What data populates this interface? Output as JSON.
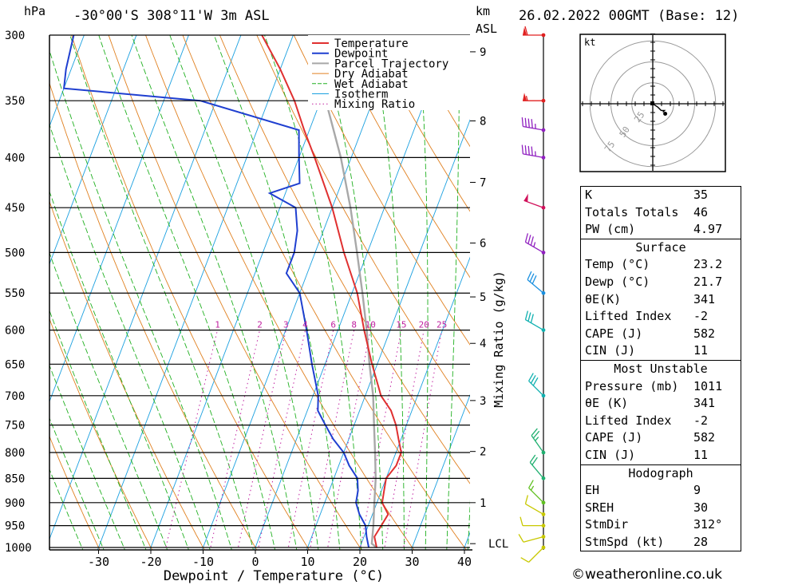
{
  "header": {
    "hpa_label": "hPa",
    "location": "-30°00'S 308°11'W 3m ASL",
    "km_label": "km",
    "asl_label": "ASL",
    "datetime": "26.02.2022 00GMT (Base: 12)"
  },
  "legend": [
    "Temperature",
    "Dewpoint",
    "Parcel Trajectory",
    "Dry Adiabat",
    "Wet Adiabat",
    "Isotherm",
    "Mixing Ratio"
  ],
  "colors": {
    "temperature": "#e03030",
    "dewpoint": "#1f3fd0",
    "parcel": "#a8a8a8",
    "dry_adiabat": "#e08020",
    "wet_adiabat": "#20b020",
    "isotherm": "#1aa0e0",
    "mixing_ratio": "#c020a0"
  },
  "chart_data": {
    "type": "line",
    "title": "Skew-T log-P diagram",
    "xlabel": "Dewpoint / Temperature (°C)",
    "ylabel": "hPa",
    "y2label": "Mixing Ratio (g/kg)",
    "pressure_ticks": [
      300,
      350,
      400,
      450,
      500,
      550,
      600,
      650,
      700,
      750,
      800,
      850,
      900,
      950,
      1000
    ],
    "temp_ticks": [
      -30,
      -20,
      -10,
      0,
      10,
      20,
      30,
      40
    ],
    "xlim": [
      -40,
      40
    ],
    "ylim": [
      1000,
      300
    ],
    "km_ticks": [
      {
        "label": "9",
        "p": 312
      },
      {
        "label": "8",
        "p": 367
      },
      {
        "label": "7",
        "p": 424
      },
      {
        "label": "6",
        "p": 489
      },
      {
        "label": "5",
        "p": 555
      },
      {
        "label": "4",
        "p": 619
      },
      {
        "label": "3",
        "p": 708
      },
      {
        "label": "2",
        "p": 798
      },
      {
        "label": "1",
        "p": 900
      }
    ],
    "lcl": {
      "label": "LCL",
      "p": 991
    },
    "mixing_ratio_labels": [
      "1",
      "2",
      "3",
      "4",
      "6",
      "8",
      "10",
      "15",
      "20",
      "25"
    ],
    "series": [
      {
        "name": "Temperature",
        "points": [
          [
            1000,
            23.2
          ],
          [
            975,
            22
          ],
          [
            950,
            22.5
          ],
          [
            925,
            23
          ],
          [
            900,
            21
          ],
          [
            875,
            20.5
          ],
          [
            850,
            20
          ],
          [
            825,
            21
          ],
          [
            800,
            21
          ],
          [
            775,
            19.5
          ],
          [
            750,
            18
          ],
          [
            725,
            16
          ],
          [
            700,
            13
          ],
          [
            650,
            9
          ],
          [
            600,
            5
          ],
          [
            550,
            1
          ],
          [
            500,
            -4.5
          ],
          [
            450,
            -10
          ],
          [
            400,
            -17
          ],
          [
            375,
            -21
          ],
          [
            350,
            -25
          ],
          [
            325,
            -30
          ],
          [
            300,
            -36
          ]
        ]
      },
      {
        "name": "Dewpoint",
        "points": [
          [
            1000,
            21.7
          ],
          [
            975,
            20.5
          ],
          [
            950,
            19.5
          ],
          [
            925,
            17.5
          ],
          [
            900,
            16
          ],
          [
            875,
            15.5
          ],
          [
            850,
            14.5
          ],
          [
            825,
            12
          ],
          [
            800,
            10
          ],
          [
            775,
            7
          ],
          [
            750,
            4.5
          ],
          [
            725,
            2
          ],
          [
            700,
            1
          ],
          [
            650,
            -2.5
          ],
          [
            600,
            -6
          ],
          [
            550,
            -10
          ],
          [
            525,
            -14
          ],
          [
            500,
            -14
          ],
          [
            475,
            -15
          ],
          [
            450,
            -17
          ],
          [
            435,
            -23
          ],
          [
            425,
            -18
          ],
          [
            400,
            -20
          ],
          [
            375,
            -22
          ],
          [
            350,
            -43
          ],
          [
            340,
            -70
          ],
          [
            325,
            -71
          ],
          [
            300,
            -72
          ]
        ]
      },
      {
        "name": "Parcel Trajectory",
        "points": [
          [
            1000,
            23.2
          ],
          [
            991,
            22
          ],
          [
            950,
            21
          ],
          [
            900,
            19.5
          ],
          [
            850,
            18
          ],
          [
            800,
            16
          ],
          [
            750,
            13.8
          ],
          [
            700,
            11.5
          ],
          [
            650,
            8.5
          ],
          [
            600,
            5.5
          ],
          [
            550,
            2
          ],
          [
            500,
            -2
          ],
          [
            450,
            -6.5
          ],
          [
            400,
            -12
          ],
          [
            350,
            -19
          ],
          [
            300,
            -26
          ]
        ]
      }
    ]
  },
  "wind_barbs": [
    {
      "p": 1000,
      "color": "#c8c800",
      "dir": 225,
      "spd": 10
    },
    {
      "p": 975,
      "color": "#c8c800",
      "dir": 255,
      "spd": 10
    },
    {
      "p": 950,
      "color": "#c8c800",
      "dir": 270,
      "spd": 10
    },
    {
      "p": 925,
      "color": "#c8c800",
      "dir": 300,
      "spd": 10
    },
    {
      "p": 900,
      "color": "#60c020",
      "dir": 315,
      "spd": 15
    },
    {
      "p": 850,
      "color": "#20b070",
      "dir": 320,
      "spd": 20
    },
    {
      "p": 800,
      "color": "#20b070",
      "dir": 325,
      "spd": 25
    },
    {
      "p": 700,
      "color": "#10b0b0",
      "dir": 315,
      "spd": 30
    },
    {
      "p": 600,
      "color": "#10b0b0",
      "dir": 300,
      "spd": 30
    },
    {
      "p": 550,
      "color": "#1a90e0",
      "dir": 310,
      "spd": 30
    },
    {
      "p": 500,
      "color": "#9020c0",
      "dir": 300,
      "spd": 35
    },
    {
      "p": 450,
      "color": "#d0105a",
      "dir": 290,
      "spd": 50
    },
    {
      "p": 400,
      "color": "#9020c0",
      "dir": 280,
      "spd": 45
    },
    {
      "p": 375,
      "color": "#9020c0",
      "dir": 280,
      "spd": 45
    },
    {
      "p": 350,
      "color": "#e02020",
      "dir": 270,
      "spd": 55
    },
    {
      "p": 300,
      "color": "#e02020",
      "dir": 270,
      "spd": 60
    }
  ],
  "hodograph": {
    "unit_label": "kt",
    "ring_labels": [
      "25",
      "50",
      "75"
    ],
    "points": [
      [
        0,
        0
      ],
      [
        6,
        -4
      ],
      [
        10,
        -8
      ],
      [
        14,
        -8
      ],
      [
        12,
        -10
      ]
    ]
  },
  "table": {
    "indices": [
      [
        "K",
        "35"
      ],
      [
        "Totals Totals",
        "46"
      ],
      [
        "PW (cm)",
        "4.97"
      ]
    ],
    "surface_title": "Surface",
    "surface": [
      [
        "Temp (°C)",
        "23.2"
      ],
      [
        "Dewp (°C)",
        "21.7"
      ],
      [
        "θE(K)",
        "341"
      ],
      [
        "Lifted Index",
        "-2"
      ],
      [
        "CAPE (J)",
        "582"
      ],
      [
        "CIN (J)",
        "11"
      ]
    ],
    "mu_title": "Most Unstable",
    "mu": [
      [
        "Pressure (mb)",
        "1011"
      ],
      [
        "θE (K)",
        "341"
      ],
      [
        "Lifted Index",
        "-2"
      ],
      [
        "CAPE (J)",
        "582"
      ],
      [
        "CIN (J)",
        "11"
      ]
    ],
    "hodo_title": "Hodograph",
    "hodo": [
      [
        "EH",
        "9"
      ],
      [
        "SREH",
        "30"
      ],
      [
        "StmDir",
        "312°"
      ],
      [
        "StmSpd (kt)",
        "28"
      ]
    ]
  },
  "footer": "©weatheronline.co.uk"
}
